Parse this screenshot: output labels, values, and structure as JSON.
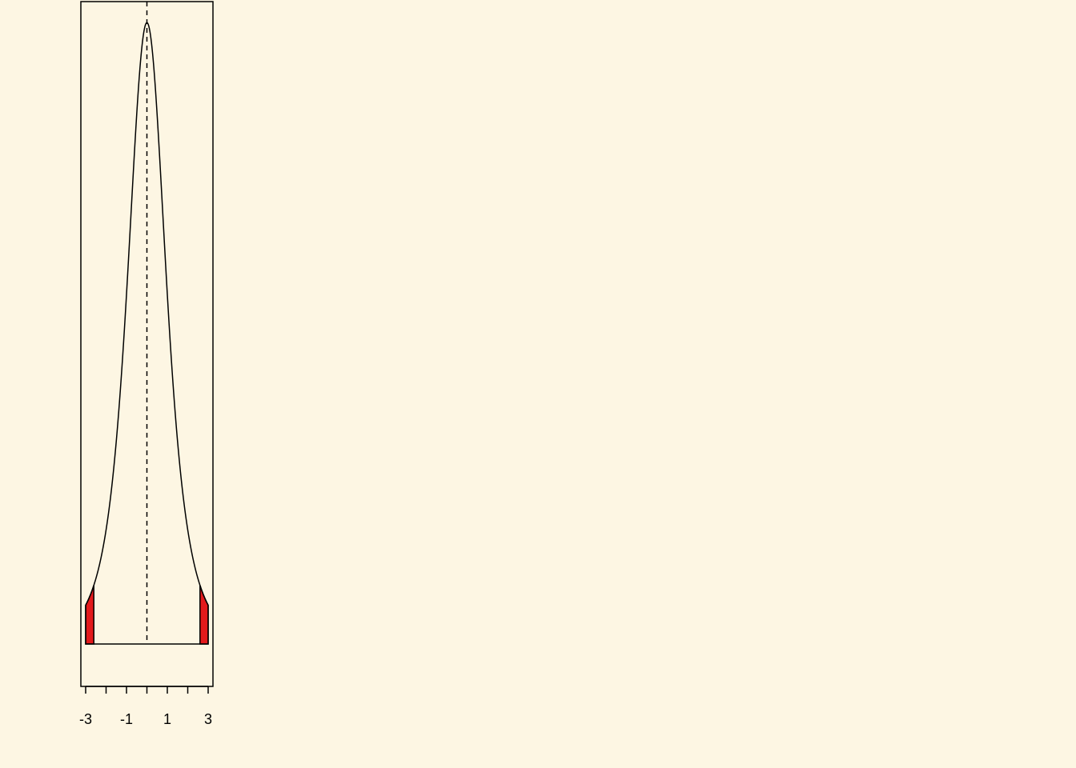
{
  "background": "#fdf6e3",
  "chart_data": {
    "type": "area",
    "title": "",
    "xlabel": "",
    "ylabel": "",
    "distribution": "t",
    "degrees_of_freedom": 3,
    "xlim": [
      -3,
      3
    ],
    "ylim": [
      0,
      0.38
    ],
    "center_line": 0,
    "x_ticks": [
      -3,
      -2,
      -1,
      0,
      1,
      2,
      3
    ],
    "x_tick_labels": [
      "-3",
      "",
      "-1",
      "",
      "1",
      "",
      "3"
    ],
    "shaded_regions": [
      {
        "from": -3,
        "to": -2.6
      },
      {
        "from": 2.6,
        "to": 3
      }
    ],
    "shade_color": "#e31a1c",
    "line_color": "#000000",
    "grid": false,
    "legend": "none"
  }
}
